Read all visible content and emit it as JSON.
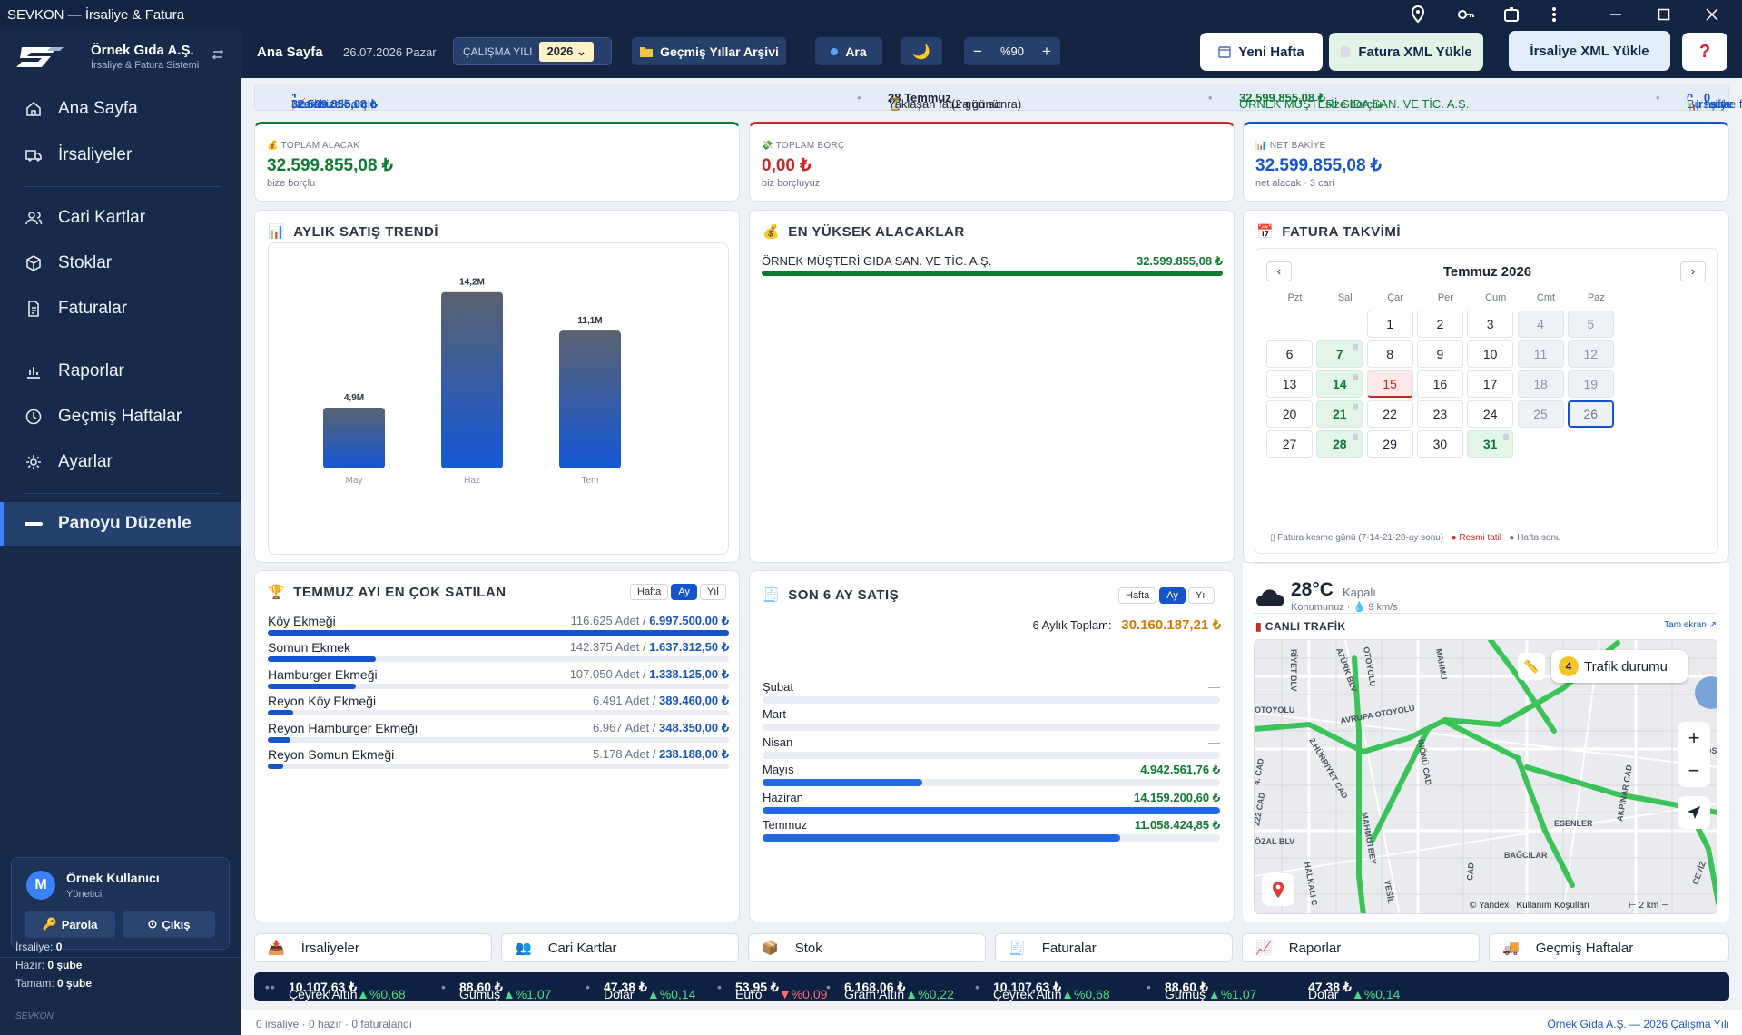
{
  "window": {
    "title": "SEVKON — İrsaliye & Fatura"
  },
  "brand": {
    "name": "Örnek Gıda A.Ş.",
    "subtitle": "İrsaliye & Fatura Sistemi"
  },
  "sidebar": {
    "items": [
      {
        "label": "Ana Sayfa",
        "icon": "home-icon"
      },
      {
        "label": "İrsaliyeler",
        "icon": "truck-icon"
      },
      {
        "label": "Cari Kartlar",
        "icon": "users-icon"
      },
      {
        "label": "Stoklar",
        "icon": "box-icon"
      },
      {
        "label": "Faturalar",
        "icon": "document-icon"
      },
      {
        "label": "Raporlar",
        "icon": "bar-chart-icon"
      },
      {
        "label": "Geçmiş Haftalar",
        "icon": "clock-icon"
      },
      {
        "label": "Ayarlar",
        "icon": "gear-icon"
      },
      {
        "label": "Panoyu Düzenle",
        "icon": "pencil-icon"
      }
    ]
  },
  "user": {
    "initial": "M",
    "name": "Örnek Kullanıcı",
    "role": "Yönetici",
    "password_btn": "Parola",
    "logout_btn": "Çıkış"
  },
  "sidebar_stats": {
    "irsaliye_label": "İrsaliye:",
    "irsaliye": "0",
    "hazir_label": "Hazır:",
    "hazir": "0 şube",
    "tamam_label": "Tamam:",
    "tamam": "0 şube",
    "footer": "SEVKON"
  },
  "header": {
    "title": "Ana Sayfa",
    "date": "26.07.2026 Pazar",
    "year_label": "ÇALIŞMA YILI",
    "year": "2026",
    "archive_btn": "Geçmiş Yıllar Arşivi",
    "search_btn": "Ara",
    "zoom": "%90",
    "new_week_btn": "Yeni Hafta",
    "invoice_xml_btn": "Fatura XML Yükle",
    "waybill_xml_btn": "İrsaliye XML Yükle",
    "help_btn": "?"
  },
  "infostrip": {
    "net_label": "Net alacak:",
    "net_value": "32.599.855,08 ₺",
    "net_sep": " · ",
    "net_count": "1",
    "net_suffix": "cari size borçlu",
    "due_label": "Yaklaşan fatura günü:",
    "due_date": "28 Temmuz",
    "due_rel": "(2 gün sonra)",
    "customer": "ÖRNEK MÜŞTERİ GIDA SAN. VE TİC. A.Ş.",
    "customer_value": "32.599.855,08 ₺",
    "customer_suffix": "size borçlu",
    "week_label": "Bu hafta:",
    "week_irs": "0",
    "week_irs_label": "irsaliye",
    "week_sube": "0",
    "week_sube_label": "şube faturalandı"
  },
  "kpi": [
    {
      "label": "TOPLAM ALACAK",
      "value": "32.599.855,08 ₺",
      "sub": "bize borçlu",
      "color": "#0f7a33"
    },
    {
      "label": "TOPLAM BORÇ",
      "value": "0,00 ₺",
      "sub": "biz borçluyuz",
      "color": "#c62828"
    },
    {
      "label": "NET BAKİYE",
      "value": "32.599.855,08 ₺",
      "sub": "net alacak · 3 cari",
      "color": "#1654c9"
    }
  ],
  "trend": {
    "title": "AYLIK SATIŞ TRENDİ"
  },
  "chart_data": {
    "type": "bar",
    "categories": [
      "May",
      "Haz",
      "Tem"
    ],
    "values": [
      4.9,
      14.2,
      11.1
    ],
    "data_labels": [
      "4,9M",
      "14,2M",
      "11,1M"
    ],
    "title": "",
    "xlabel": "",
    "ylabel": "",
    "ylim": [
      0,
      16
    ],
    "grid": false
  },
  "top_receivables": {
    "title": "EN YÜKSEK ALACAKLAR",
    "items": [
      {
        "name": "ÖRNEK MÜŞTERİ GIDA SAN. VE TİC. A.Ş.",
        "value": "32.599.855,08 ₺",
        "fraction": 1
      }
    ]
  },
  "calendar": {
    "title": "FATURA TAKVİMİ",
    "month": "Temmuz 2026",
    "weekdays": [
      "Pzt",
      "Sal",
      "Çar",
      "Per",
      "Cum",
      "Cmt",
      "Paz"
    ],
    "days": [
      [
        null,
        null,
        "1",
        "2",
        "3",
        "4",
        "5"
      ],
      [
        "6",
        "7",
        "8",
        "9",
        "10",
        "11",
        "12"
      ],
      [
        "13",
        "14",
        "15",
        "16",
        "17",
        "18",
        "19"
      ],
      [
        "20",
        "21",
        "22",
        "23",
        "24",
        "25",
        "26"
      ],
      [
        "27",
        "28",
        "29",
        "30",
        "31",
        null,
        null
      ]
    ],
    "billing_days": [
      "7",
      "14",
      "21",
      "28",
      "31"
    ],
    "holidays": [
      "15"
    ],
    "today": "26",
    "legend_billing": "Fatura kesme günü (7-14-21-28-ay sonu)",
    "legend_holiday": "Resmi tatil",
    "legend_weekend": "Hafta sonu"
  },
  "weather": {
    "temp": "28°C",
    "condition": "Kapalı",
    "location": "Konumunuz",
    "wind": "9 km/s"
  },
  "traffic": {
    "title": "CANLI TRAFİK",
    "fullscreen": "Tam ekran ↗",
    "status_label": "Trafik durumu",
    "level": "4",
    "copyright": "© Yandex",
    "terms": "Kullanım Koşulları",
    "scale": "2 km",
    "streets": [
      "OTOYOLU",
      "AVRUPA OTOYOLU",
      "RİYET BLV",
      "ATÜRK BLV",
      "OTOYOLU",
      "MAHMU",
      "2.HÜRRİYET CAD",
      "İNÖNÜ CAD",
      "MAHMUTBEY",
      "ESENLER",
      "BAĞCILAR",
      "GAZİOS",
      "AKPINAR CAD",
      "ÖZAL BLV",
      "HALKALI C",
      "YESİL",
      "CAD",
      "CEVİZ",
      "4. CAD",
      "222 CAD"
    ]
  },
  "top_products": {
    "title": "TEMMUZ AYI EN ÇOK SATILAN",
    "tabs": [
      "Hafta",
      "Ay",
      "Yıl"
    ],
    "active_tab": "Ay",
    "unit": "Adet",
    "items": [
      {
        "name": "Köy Ekmeği",
        "qty": "116.625",
        "amount": "6.997.500,00 ₺",
        "fraction": 1.0
      },
      {
        "name": "Somun Ekmek",
        "qty": "142.375",
        "amount": "1.637.312,50 ₺",
        "fraction": 0.234
      },
      {
        "name": "Hamburger Ekmeği",
        "qty": "107.050",
        "amount": "1.338.125,00 ₺",
        "fraction": 0.191
      },
      {
        "name": "Reyon Köy Ekmeği",
        "qty": "6.491",
        "amount": "389.460,00 ₺",
        "fraction": 0.056
      },
      {
        "name": "Reyon Hamburger Ekmeği",
        "qty": "6.967",
        "amount": "348.350,00 ₺",
        "fraction": 0.05
      },
      {
        "name": "Reyon Somun Ekmeği",
        "qty": "5.178",
        "amount": "238.188,00 ₺",
        "fraction": 0.034
      }
    ]
  },
  "six_months": {
    "title": "SON 6 AY SATIŞ",
    "tabs": [
      "Hafta",
      "Ay",
      "Yıl"
    ],
    "active_tab": "Ay",
    "total_label": "6 Aylık Toplam:",
    "total": "30.160.187,21 ₺",
    "items": [
      {
        "name": "Şubat",
        "value": "—",
        "fraction": 0
      },
      {
        "name": "Mart",
        "value": "—",
        "fraction": 0
      },
      {
        "name": "Nisan",
        "value": "—",
        "fraction": 0
      },
      {
        "name": "Mayıs",
        "value": "4.942.561,76 ₺",
        "fraction": 0.349
      },
      {
        "name": "Haziran",
        "value": "14.159.200,60 ₺",
        "fraction": 1.0
      },
      {
        "name": "Temmuz",
        "value": "11.058.424,85 ₺",
        "fraction": 0.781
      }
    ]
  },
  "quick": [
    {
      "label": "İrsaliyeler",
      "icon": "inbox-icon"
    },
    {
      "label": "Cari Kartlar",
      "icon": "people-icon"
    },
    {
      "label": "Stok",
      "icon": "package-icon"
    },
    {
      "label": "Faturalar",
      "icon": "invoice-icon"
    },
    {
      "label": "Raporlar",
      "icon": "chart-icon"
    },
    {
      "label": "Geçmiş Haftalar",
      "icon": "truck-icon"
    }
  ],
  "currencies": [
    {
      "name": "Çeyrek Altın",
      "value": "10.107,63 ₺",
      "change": "▲%0,68",
      "up": true
    },
    {
      "name": "Gümüş",
      "value": "88,60 ₺",
      "change": "▲%1,07",
      "up": true
    },
    {
      "name": "Dolar",
      "value": "47,38 ₺",
      "change": "▲%0,14",
      "up": true
    },
    {
      "name": "Euro",
      "value": "53,95 ₺",
      "change": "▼%0,09",
      "up": false
    },
    {
      "name": "Gram Altın",
      "value": "6.168,06 ₺",
      "change": "▲%0,22",
      "up": true
    },
    {
      "name": "Çeyrek Altın",
      "value": "10.107,63 ₺",
      "change": "▲%0,68",
      "up": true
    },
    {
      "name": "Gümüş",
      "value": "88,60 ₺",
      "change": "▲%1,07",
      "up": true
    },
    {
      "name": "Dolar",
      "value": "47,38 ₺",
      "change": "▲%0,14",
      "up": true
    }
  ],
  "footer": {
    "left": "0 irsaliye · 0 hazır · 0 faturalandı",
    "right": "Örnek Gıda A.Ş. — 2026 Çalışma Yılı"
  },
  "colors": {
    "sidebar": "#172a4a",
    "header": "#142543",
    "accent": "#1654c9",
    "positive": "#0f7a33",
    "negative": "#c62828"
  }
}
